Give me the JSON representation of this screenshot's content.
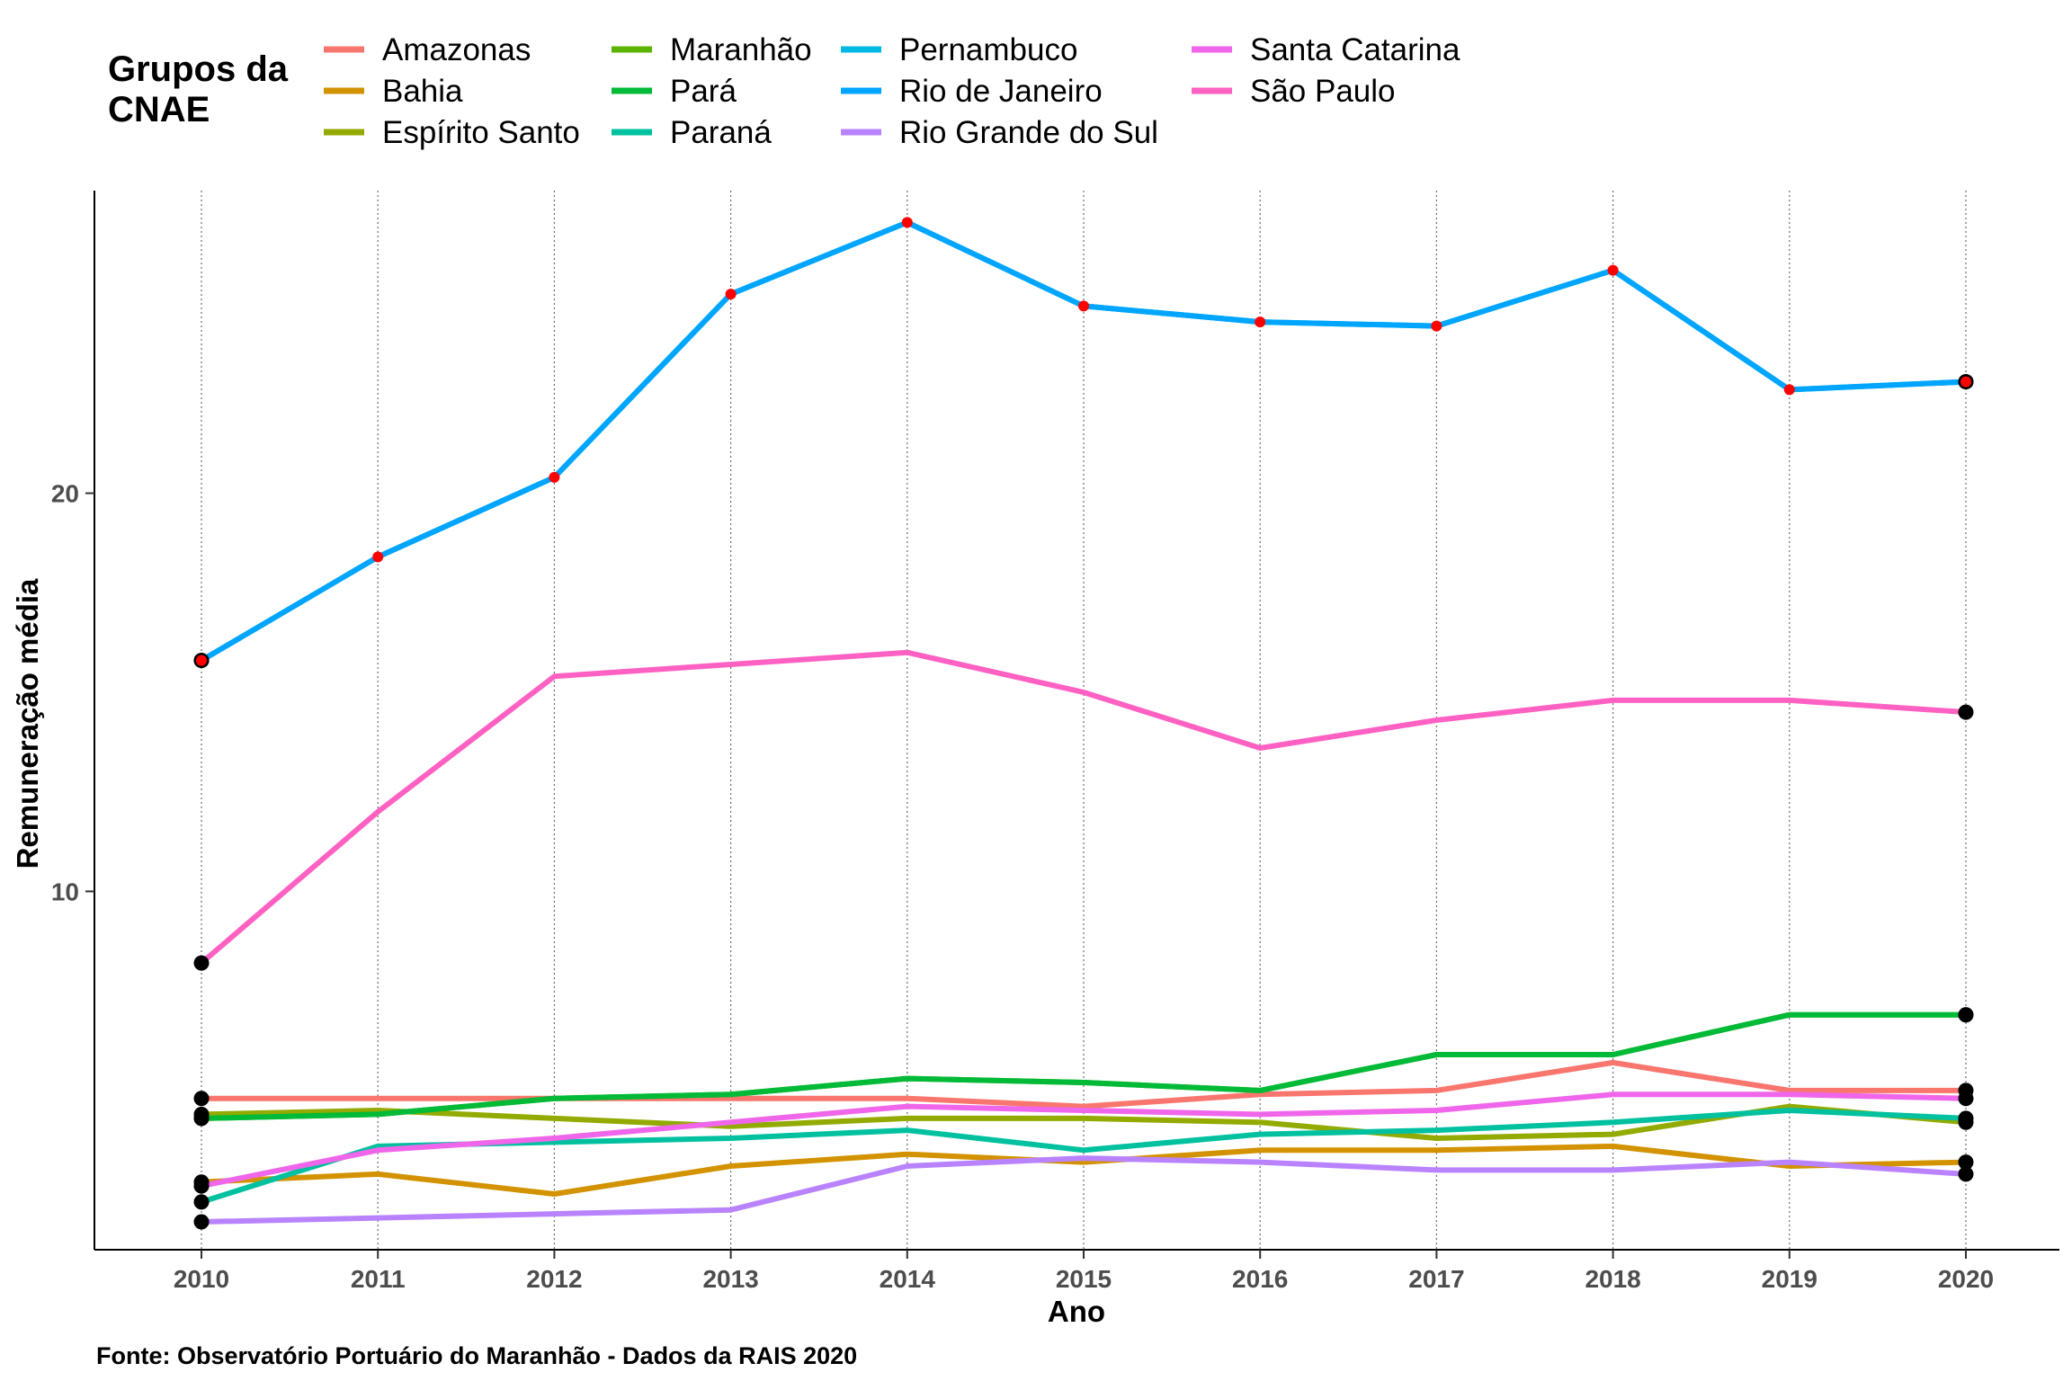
{
  "chart_data": {
    "type": "line",
    "title": "",
    "xlabel": "Ano",
    "ylabel": "Remuneração média",
    "caption": "Fonte: Observatório Portuário do Maranhão - Dados da RAIS 2020",
    "legend_title": "Grupos da\nCNAE",
    "legend_position": "top",
    "x": [
      2010,
      2011,
      2012,
      2013,
      2014,
      2015,
      2016,
      2017,
      2018,
      2019,
      2020
    ],
    "x_ticks": [
      "2010",
      "2011",
      "2012",
      "2013",
      "2014",
      "2015",
      "2016",
      "2017",
      "2018",
      "2019",
      "2020"
    ],
    "y_ticks": [
      10,
      20
    ],
    "ylim": [
      1.0,
      27.6
    ],
    "grid": "vertical dotted",
    "series": [
      {
        "name": "Amazonas",
        "color": "#F8766D",
        "values": [
          4.8,
          4.8,
          4.8,
          4.8,
          4.8,
          4.6,
          4.9,
          5.0,
          5.7,
          5.0,
          5.0
        ]
      },
      {
        "name": "Bahia",
        "color": "#D39200",
        "values": [
          2.7,
          2.9,
          2.4,
          3.1,
          3.4,
          3.2,
          3.5,
          3.5,
          3.6,
          3.1,
          3.2
        ]
      },
      {
        "name": "Espírito Santo",
        "color": "#93AA00",
        "values": [
          4.4,
          4.5,
          4.3,
          4.1,
          4.3,
          4.3,
          4.2,
          3.8,
          3.9,
          4.6,
          4.2
        ]
      },
      {
        "name": "Maranhão",
        "color": "#5BB300",
        "values": [
          4.3,
          4.4,
          4.8,
          4.9,
          5.3,
          5.2,
          5.0,
          5.9,
          5.9,
          6.9,
          6.9
        ]
      },
      {
        "name": "Pará",
        "color": "#00BA38",
        "values": [
          4.3,
          4.4,
          4.8,
          4.9,
          5.3,
          5.2,
          5.0,
          5.9,
          5.9,
          6.9,
          6.9
        ]
      },
      {
        "name": "Paraná",
        "color": "#00C19F",
        "values": [
          2.2,
          3.6,
          3.7,
          3.8,
          4.0,
          3.5,
          3.9,
          4.0,
          4.2,
          4.5,
          4.3
        ]
      },
      {
        "name": "Pernambuco",
        "color": "#00B9E3",
        "values": [
          15.8,
          18.4,
          20.4,
          25.0,
          26.8,
          24.7,
          24.3,
          24.2,
          25.6,
          22.6,
          22.8
        ]
      },
      {
        "name": "Rio de Janeiro",
        "color": "#00A5FF",
        "values": [
          15.8,
          18.4,
          20.4,
          25.0,
          26.8,
          24.7,
          24.3,
          24.2,
          25.6,
          22.6,
          22.8
        ]
      },
      {
        "name": "Rio Grande do Sul",
        "color": "#B983FF",
        "values": [
          1.7,
          1.8,
          1.9,
          2.0,
          3.1,
          3.3,
          3.2,
          3.0,
          3.0,
          3.2,
          2.9
        ]
      },
      {
        "name": "Santa Catarina",
        "color": "#F066EA",
        "values": [
          2.6,
          3.5,
          3.8,
          4.2,
          4.6,
          4.5,
          4.4,
          4.5,
          4.9,
          4.9,
          4.8
        ]
      },
      {
        "name": "São Paulo",
        "color": "#FF61C3",
        "values": [
          8.2,
          12.0,
          15.4,
          15.7,
          16.0,
          15.0,
          13.6,
          14.3,
          14.8,
          14.8,
          14.5
        ]
      }
    ],
    "red_point_series": "Rio de Janeiro"
  }
}
